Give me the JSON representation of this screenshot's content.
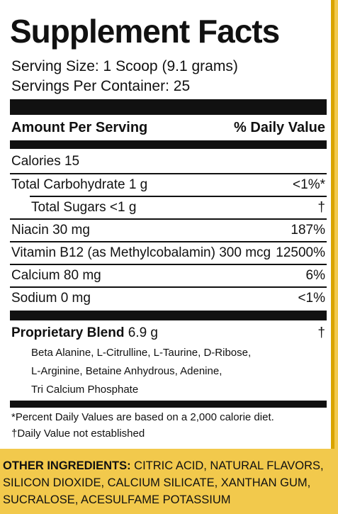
{
  "title": "Supplement Facts",
  "serving_size": "Serving Size: 1 Scoop (9.1 grams)",
  "servings_per_container": "Servings Per Container: 25",
  "header": {
    "amount": "Amount Per Serving",
    "daily_value": "% Daily Value"
  },
  "nutrients": [
    {
      "name": "Calories 15",
      "dv": ""
    },
    {
      "name": "Total Carbohydrate 1 g",
      "dv": "<1%*"
    },
    {
      "name": "Total Sugars <1 g",
      "dv": "†"
    },
    {
      "name": "Niacin 30 mg",
      "dv": "187%"
    },
    {
      "name": "Vitamin B12 (as Methylcobalamin) 300 mcg",
      "dv": "12500%"
    },
    {
      "name": "Calcium 80 mg",
      "dv": "6%"
    },
    {
      "name": "Sodium 0 mg",
      "dv": "<1%"
    }
  ],
  "blend": {
    "name": "Proprietary Blend",
    "amount": "6.9 g",
    "dv": "†",
    "lines": [
      "Beta Alanine, L-Citrulline, L-Taurine, D-Ribose,",
      "L-Arginine, Betaine Anhydrous, Adenine,",
      "Tri Calcium Phosphate"
    ]
  },
  "footnotes": [
    "*Percent Daily Values are based on a 2,000 calorie diet.",
    "†Daily Value not established"
  ],
  "other_ingredients": {
    "heading": "OTHER INGREDIENTS:",
    "line1_rest": " CITRIC ACID, NATURAL FLAVORS,",
    "line2": "SILICON DIOXIDE, CALCIUM SILICATE, XANTHAN GUM,",
    "line3": "SUCRALOSE, ACESULFAME POTASSIUM"
  },
  "colors": {
    "background_band": "#f2c94c",
    "label": "#ffffff",
    "ink": "#111111"
  }
}
